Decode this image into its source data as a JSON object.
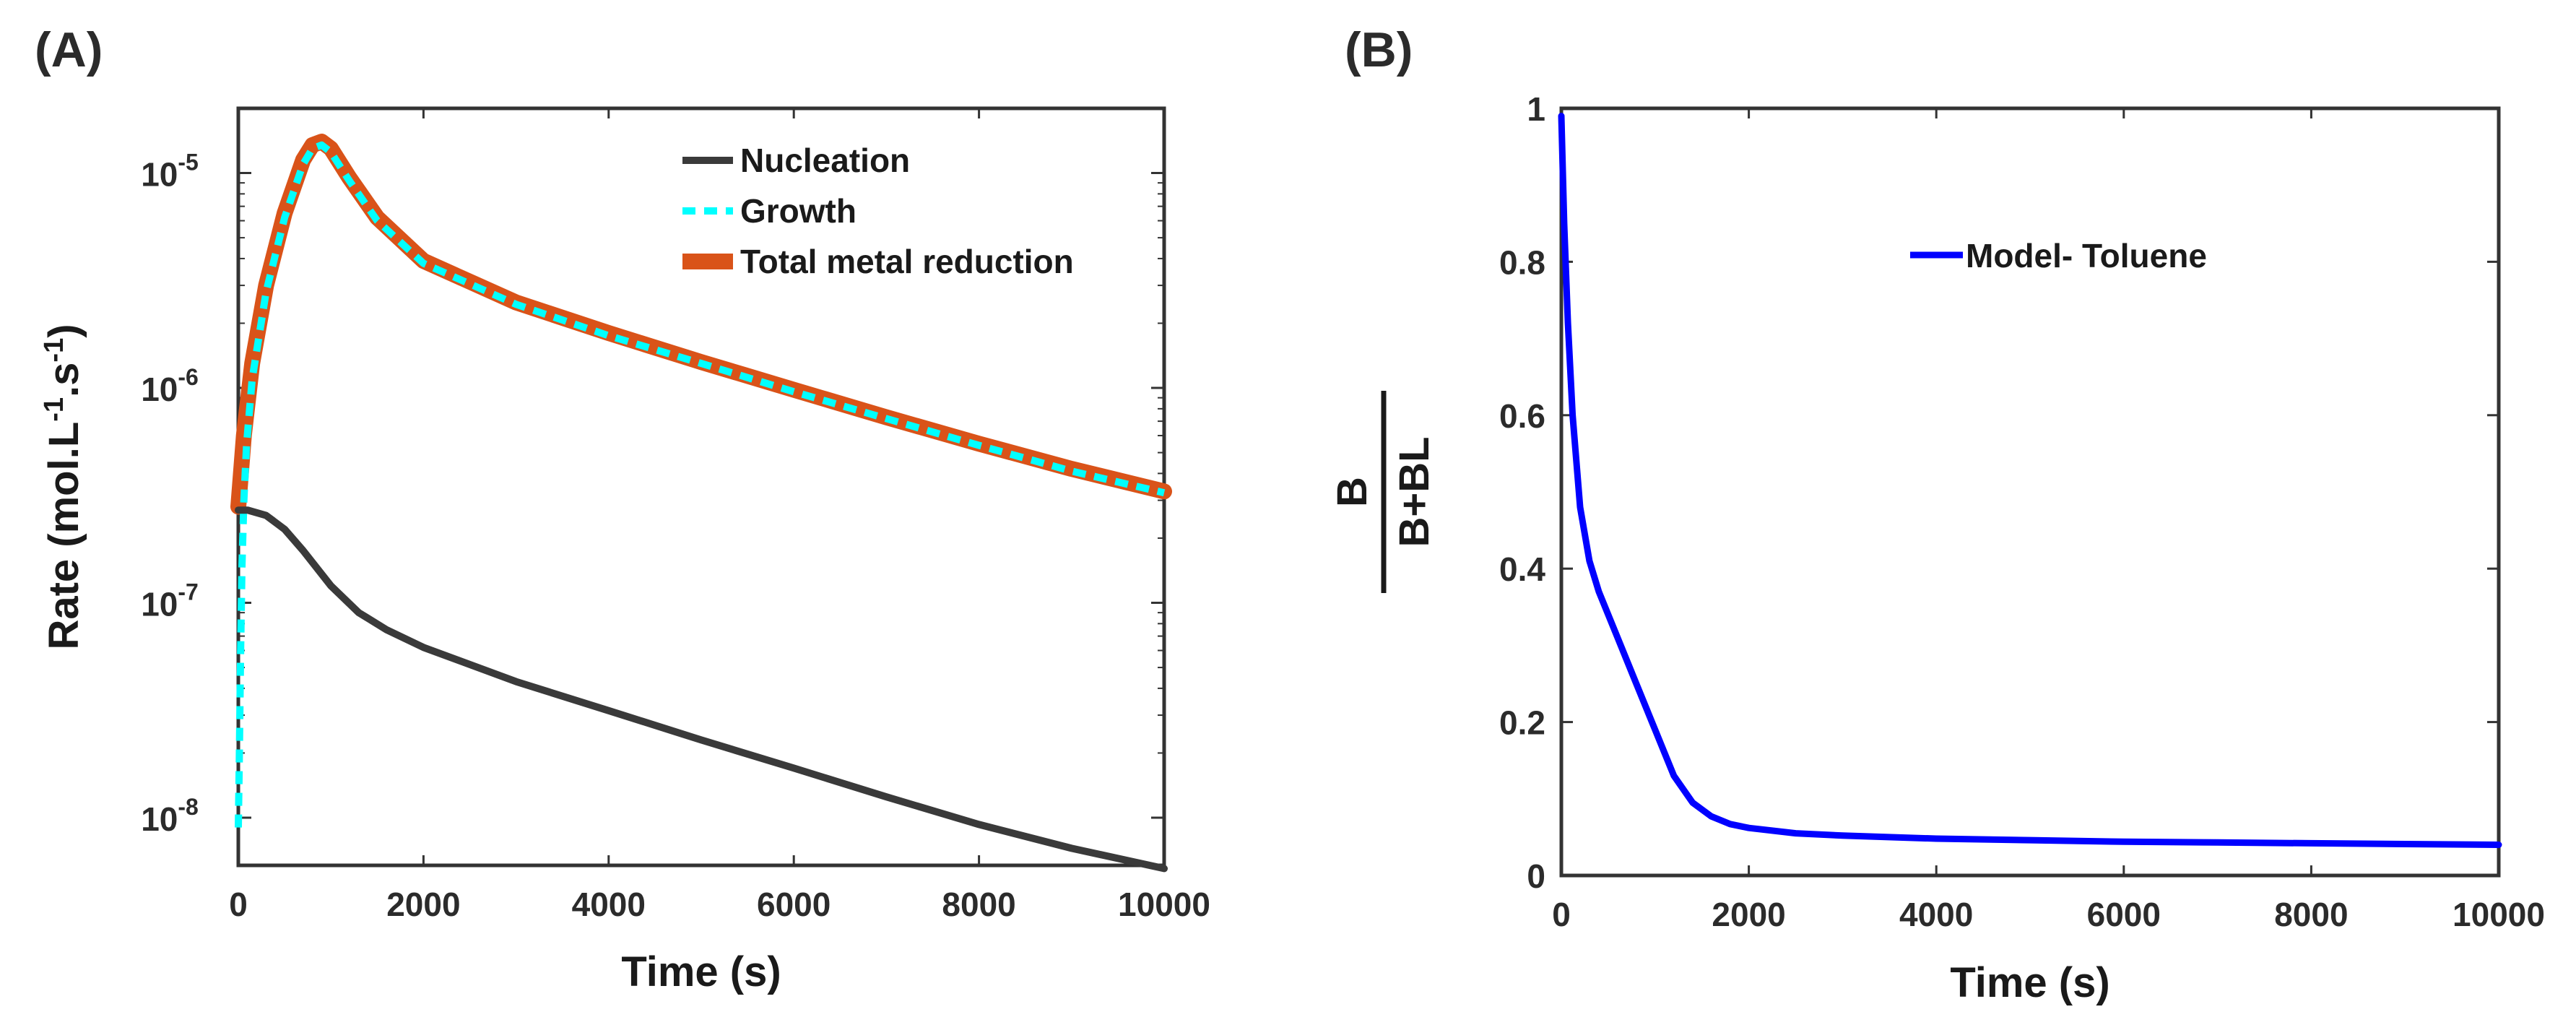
{
  "chart_data": [
    {
      "panel_label": "(A)",
      "type": "line",
      "y_scale": "log",
      "xlabel": "Time (s)",
      "ylabel": {
        "prefix": "Rate (mol.L",
        "exp1": "-1",
        "mid": ".s",
        "exp2": "-1",
        "suffix": ")"
      },
      "xlim": [
        0,
        10000
      ],
      "ylim": [
        6e-09,
        2e-05
      ],
      "x_ticks": [
        0,
        2000,
        4000,
        6000,
        8000,
        10000
      ],
      "x_tick_labels": [
        "0",
        "2000",
        "4000",
        "6000",
        "8000",
        "10000"
      ],
      "y_ticks": [
        {
          "value": 1e-08,
          "base": "10",
          "exp": "-8"
        },
        {
          "value": 1e-07,
          "base": "10",
          "exp": "-7"
        },
        {
          "value": 1e-06,
          "base": "10",
          "exp": "-6"
        },
        {
          "value": 1e-05,
          "base": "10",
          "exp": "-5"
        }
      ],
      "legend": {
        "location": "top-right"
      },
      "series": [
        {
          "name": "Total metal reduction",
          "color": "#d95319",
          "style": "thick-solid",
          "x": [
            0,
            60,
            150,
            300,
            500,
            700,
            800,
            900,
            1000,
            1200,
            1500,
            2000,
            3000,
            4000,
            5000,
            6000,
            7000,
            8000,
            9000,
            10000
          ],
          "y": [
            2.8e-07,
            6e-07,
            1.3e-06,
            3e-06,
            6.5e-06,
            1.15e-05,
            1.35e-05,
            1.4e-05,
            1.3e-05,
            9.5e-06,
            6.2e-06,
            3.9e-06,
            2.5e-06,
            1.8e-06,
            1.32e-06,
            9.8e-07,
            7.3e-07,
            5.5e-07,
            4.2e-07,
            3.3e-07
          ]
        },
        {
          "name": "Growth",
          "color": "#00ffff",
          "style": "dashed",
          "x": [
            0,
            10,
            25,
            40,
            60,
            90,
            150,
            300,
            500,
            700,
            800,
            900,
            1000,
            1200,
            1500,
            2000,
            3000,
            4000,
            5000,
            6000,
            7000,
            8000,
            9000,
            10000
          ],
          "y": [
            9e-09,
            1.8e-08,
            6e-08,
            1.5e-07,
            3e-07,
            5.5e-07,
            1.1e-06,
            2.8e-06,
            6.2e-06,
            1.1e-05,
            1.3e-05,
            1.35e-05,
            1.25e-05,
            9.2e-06,
            6e-06,
            3.8e-06,
            2.45e-06,
            1.75e-06,
            1.3e-06,
            9.6e-07,
            7.2e-07,
            5.4e-07,
            4.1e-07,
            3.25e-07
          ]
        },
        {
          "name": "Nucleation",
          "color": "#3a3a3a",
          "style": "solid",
          "x": [
            0,
            100,
            300,
            500,
            700,
            1000,
            1300,
            1600,
            2000,
            3000,
            4000,
            5000,
            6000,
            7000,
            8000,
            9000,
            10000
          ],
          "y": [
            2.7e-07,
            2.7e-07,
            2.55e-07,
            2.2e-07,
            1.75e-07,
            1.2e-07,
            9e-08,
            7.5e-08,
            6.2e-08,
            4.3e-08,
            3.15e-08,
            2.3e-08,
            1.7e-08,
            1.25e-08,
            9.3e-09,
            7.2e-09,
            5.8e-09
          ]
        }
      ]
    },
    {
      "panel_label": "(B)",
      "type": "line",
      "xlabel": "Time (s)",
      "ylabel": {
        "numerator": "B",
        "denominator": "B+BL"
      },
      "xlim": [
        0,
        10000
      ],
      "ylim": [
        0,
        1
      ],
      "x_ticks": [
        0,
        2000,
        4000,
        6000,
        8000,
        10000
      ],
      "x_tick_labels": [
        "0",
        "2000",
        "4000",
        "6000",
        "8000",
        "10000"
      ],
      "y_ticks": [
        0,
        0.2,
        0.4,
        0.6,
        0.8,
        1
      ],
      "y_tick_labels": [
        "0",
        "0.2",
        "0.4",
        "0.6",
        "0.8",
        "1"
      ],
      "legend": {
        "location": "top-right"
      },
      "series": [
        {
          "name": "Model- Toluene",
          "color": "#0000ff",
          "x": [
            0,
            30,
            70,
            120,
            200,
            300,
            400,
            600,
            800,
            1000,
            1200,
            1400,
            1600,
            1800,
            2000,
            2500,
            3000,
            4000,
            5000,
            6000,
            7000,
            8000,
            9000,
            10000
          ],
          "y": [
            0.99,
            0.85,
            0.72,
            0.6,
            0.48,
            0.41,
            0.37,
            0.31,
            0.25,
            0.19,
            0.13,
            0.095,
            0.077,
            0.067,
            0.062,
            0.055,
            0.052,
            0.048,
            0.046,
            0.044,
            0.043,
            0.042,
            0.041,
            0.04
          ]
        }
      ]
    }
  ]
}
